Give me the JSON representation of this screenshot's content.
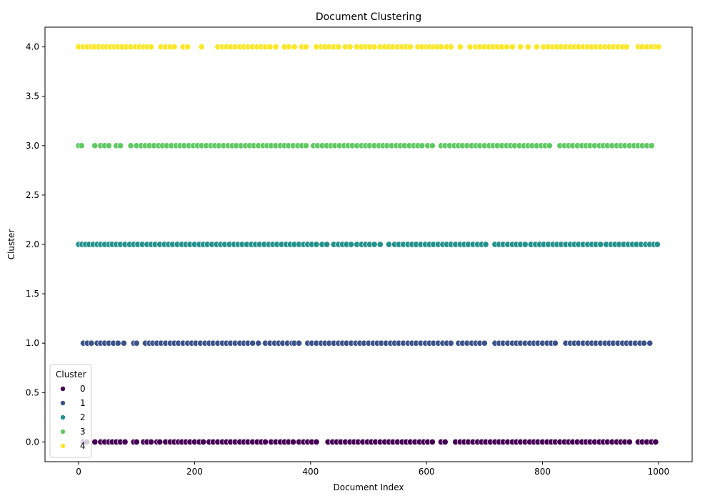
{
  "chart_data": {
    "type": "scatter",
    "title": "Document Clustering",
    "xlabel": "Document Index",
    "ylabel": "Cluster",
    "xlim": [
      -58,
      1058
    ],
    "ylim": [
      -0.2,
      4.2
    ],
    "x_ticks": [
      0,
      200,
      400,
      600,
      800,
      1000
    ],
    "x_tick_labels": [
      "0",
      "200",
      "400",
      "600",
      "800",
      "1000"
    ],
    "y_ticks": [
      0.0,
      0.5,
      1.0,
      1.5,
      2.0,
      2.5,
      3.0,
      3.5,
      4.0
    ],
    "y_tick_labels": [
      "0.0",
      "0.5",
      "1.0",
      "1.5",
      "2.0",
      "2.5",
      "3.0",
      "3.5",
      "4.0"
    ],
    "grid": false,
    "legend": {
      "title": "Cluster",
      "placement": "lower-left",
      "entries": [
        "0",
        "1",
        "2",
        "3",
        "4"
      ]
    },
    "series": [
      {
        "name": "0",
        "color": "#440154",
        "y": 0,
        "x": [
          8,
          14,
          28,
          38,
          45,
          52,
          58,
          65,
          72,
          80,
          95,
          100,
          112,
          118,
          125,
          135,
          140,
          150,
          158,
          165,
          172,
          178,
          185,
          192,
          200,
          208,
          215,
          225,
          232,
          240,
          248,
          255,
          262,
          270,
          278,
          285,
          292,
          300,
          308,
          315,
          322,
          332,
          340,
          348,
          355,
          362,
          370,
          380,
          388,
          395,
          402,
          410,
          430,
          438,
          445,
          452,
          460,
          468,
          475,
          482,
          490,
          498,
          505,
          512,
          520,
          528,
          535,
          542,
          550,
          558,
          565,
          572,
          580,
          588,
          595,
          602,
          610,
          625,
          632,
          650,
          658,
          665,
          672,
          680,
          688,
          695,
          702,
          710,
          718,
          725,
          732,
          740,
          748,
          755,
          762,
          770,
          778,
          785,
          792,
          800,
          808,
          815,
          822,
          830,
          838,
          845,
          852,
          860,
          868,
          875,
          882,
          890,
          898,
          905,
          912,
          920,
          928,
          935,
          942,
          950,
          965,
          972,
          980,
          988,
          995
        ]
      },
      {
        "name": "1",
        "color": "#3b528b",
        "y": 1,
        "x": [
          8,
          15,
          22,
          32,
          38,
          45,
          52,
          60,
          68,
          78,
          95,
          100,
          115,
          122,
          128,
          135,
          142,
          150,
          158,
          165,
          172,
          180,
          188,
          195,
          202,
          210,
          218,
          225,
          232,
          240,
          248,
          255,
          262,
          270,
          278,
          285,
          292,
          300,
          310,
          322,
          330,
          338,
          345,
          352,
          360,
          368,
          372,
          380,
          395,
          402,
          410,
          418,
          425,
          432,
          440,
          448,
          455,
          462,
          470,
          478,
          485,
          492,
          500,
          508,
          515,
          522,
          530,
          538,
          545,
          552,
          560,
          568,
          575,
          582,
          590,
          598,
          605,
          612,
          620,
          628,
          635,
          642,
          655,
          662,
          670,
          678,
          685,
          692,
          700,
          718,
          725,
          732,
          740,
          748,
          755,
          762,
          770,
          778,
          785,
          792,
          800,
          808,
          815,
          822,
          840,
          848,
          855,
          862,
          870,
          878,
          885,
          892,
          900,
          908,
          915,
          922,
          930,
          938,
          945,
          952,
          960,
          968,
          975,
          985
        ]
      },
      {
        "name": "2",
        "color": "#21918c",
        "y": 2,
        "x": [
          0,
          6,
          12,
          18,
          25,
          32,
          38,
          45,
          52,
          58,
          65,
          72,
          80,
          88,
          95,
          102,
          110,
          118,
          125,
          132,
          140,
          148,
          155,
          162,
          170,
          178,
          185,
          192,
          200,
          208,
          215,
          222,
          230,
          238,
          245,
          252,
          260,
          268,
          275,
          282,
          290,
          298,
          305,
          312,
          320,
          328,
          335,
          342,
          350,
          358,
          365,
          372,
          380,
          388,
          395,
          402,
          410,
          420,
          428,
          440,
          448,
          455,
          462,
          470,
          480,
          488,
          495,
          502,
          510,
          520,
          535,
          545,
          552,
          560,
          568,
          575,
          582,
          590,
          598,
          605,
          612,
          620,
          628,
          635,
          642,
          650,
          658,
          665,
          672,
          680,
          688,
          695,
          702,
          718,
          725,
          732,
          740,
          748,
          755,
          762,
          770,
          780,
          788,
          795,
          802,
          810,
          818,
          825,
          832,
          840,
          848,
          855,
          862,
          870,
          878,
          885,
          892,
          900,
          910,
          918,
          925,
          932,
          940,
          948,
          955,
          962,
          970,
          978,
          985,
          992,
          998
        ]
      },
      {
        "name": "3",
        "color": "#5ec962",
        "y": 3,
        "x": [
          0,
          5,
          28,
          38,
          45,
          52,
          65,
          72,
          90,
          100,
          108,
          115,
          122,
          130,
          138,
          145,
          152,
          160,
          168,
          175,
          182,
          190,
          198,
          205,
          212,
          220,
          228,
          235,
          242,
          250,
          258,
          265,
          272,
          280,
          288,
          295,
          302,
          310,
          318,
          325,
          332,
          340,
          348,
          355,
          362,
          370,
          378,
          385,
          392,
          405,
          412,
          420,
          428,
          435,
          442,
          450,
          458,
          465,
          472,
          480,
          488,
          495,
          502,
          510,
          518,
          525,
          532,
          540,
          548,
          555,
          562,
          570,
          578,
          585,
          592,
          602,
          610,
          625,
          632,
          640,
          648,
          655,
          662,
          670,
          678,
          685,
          692,
          700,
          708,
          715,
          722,
          730,
          738,
          745,
          752,
          760,
          768,
          775,
          782,
          790,
          798,
          805,
          812,
          830,
          838,
          845,
          852,
          860,
          868,
          875,
          882,
          890,
          898,
          905,
          912,
          920,
          928,
          935,
          942,
          950,
          958,
          965,
          972,
          980,
          988
        ]
      },
      {
        "name": "4",
        "color": "#fde725",
        "y": 4,
        "x": [
          0,
          8,
          15,
          22,
          28,
          35,
          42,
          48,
          55,
          62,
          68,
          75,
          82,
          90,
          98,
          105,
          112,
          118,
          125,
          142,
          150,
          158,
          165,
          180,
          188,
          212,
          240,
          248,
          255,
          262,
          270,
          278,
          285,
          292,
          300,
          308,
          315,
          322,
          330,
          340,
          355,
          362,
          372,
          385,
          392,
          410,
          418,
          425,
          432,
          440,
          448,
          460,
          468,
          480,
          488,
          495,
          502,
          510,
          520,
          528,
          535,
          542,
          550,
          558,
          565,
          572,
          585,
          592,
          600,
          605,
          612,
          618,
          625,
          635,
          642,
          658,
          675,
          685,
          692,
          700,
          708,
          715,
          722,
          730,
          738,
          748,
          762,
          775,
          790,
          802,
          810,
          818,
          825,
          832,
          840,
          848,
          855,
          862,
          870,
          878,
          885,
          892,
          900,
          908,
          915,
          922,
          930,
          938,
          945,
          965,
          972,
          980,
          988,
          995,
          1000
        ]
      }
    ]
  }
}
